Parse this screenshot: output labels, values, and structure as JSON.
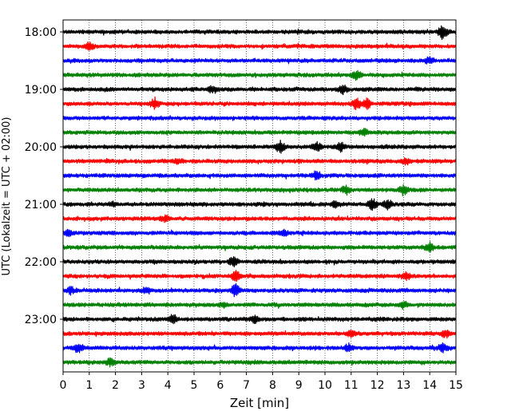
{
  "chart_data": {
    "type": "line",
    "title": "",
    "xlabel": "Zeit  [min]",
    "ylabel": "UTC (Lokalzeit = UTC + 02:00)",
    "xlim": [
      0,
      15
    ],
    "x_ticks": [
      0,
      1,
      2,
      3,
      4,
      5,
      6,
      7,
      8,
      9,
      10,
      11,
      12,
      13,
      14,
      15
    ],
    "x_tick_labels": [
      "0",
      "1",
      "2",
      "3",
      "4",
      "5",
      "6",
      "7",
      "8",
      "9",
      "10",
      "11",
      "12",
      "13",
      "14",
      "15"
    ],
    "y_tick_labels": [
      "18:00",
      "19:00",
      "20:00",
      "21:00",
      "22:00",
      "23:00"
    ],
    "grid": "vertical dotted lines at every minute",
    "row_colors": [
      "#000000",
      "#ff0000",
      "#0000ff",
      "#008000"
    ],
    "rows": [
      {
        "start": "18:00",
        "color": "#000000",
        "events": [
          [
            14.5,
            1.0
          ]
        ]
      },
      {
        "start": "18:15",
        "color": "#ff0000",
        "events": [
          [
            1.0,
            0.5
          ]
        ]
      },
      {
        "start": "18:30",
        "color": "#0000ff",
        "events": [
          [
            14.0,
            0.4
          ]
        ]
      },
      {
        "start": "18:45",
        "color": "#008000",
        "events": [
          [
            11.2,
            0.6
          ]
        ]
      },
      {
        "start": "19:00",
        "color": "#000000",
        "events": [
          [
            5.7,
            0.4
          ],
          [
            10.7,
            0.6
          ]
        ]
      },
      {
        "start": "19:15",
        "color": "#ff0000",
        "events": [
          [
            3.5,
            0.6
          ],
          [
            11.2,
            0.7
          ],
          [
            11.6,
            0.6
          ]
        ]
      },
      {
        "start": "19:30",
        "color": "#0000ff",
        "events": []
      },
      {
        "start": "19:45",
        "color": "#008000",
        "events": [
          [
            11.5,
            0.4
          ]
        ]
      },
      {
        "start": "20:00",
        "color": "#000000",
        "events": [
          [
            8.3,
            0.7
          ],
          [
            9.7,
            0.6
          ],
          [
            10.6,
            0.6
          ]
        ]
      },
      {
        "start": "20:15",
        "color": "#ff0000",
        "events": [
          [
            4.4,
            0.3
          ],
          [
            13.1,
            0.4
          ]
        ]
      },
      {
        "start": "20:30",
        "color": "#0000ff",
        "events": [
          [
            9.7,
            0.5
          ]
        ]
      },
      {
        "start": "20:45",
        "color": "#008000",
        "events": [
          [
            10.8,
            0.5
          ],
          [
            13.0,
            0.7
          ]
        ]
      },
      {
        "start": "21:00",
        "color": "#000000",
        "events": [
          [
            1.9,
            0.3
          ],
          [
            10.4,
            0.4
          ],
          [
            11.8,
            0.8
          ],
          [
            12.4,
            0.6
          ]
        ]
      },
      {
        "start": "21:15",
        "color": "#ff0000",
        "events": [
          [
            3.9,
            0.4
          ]
        ]
      },
      {
        "start": "21:30",
        "color": "#0000ff",
        "events": [
          [
            0.2,
            0.4
          ],
          [
            8.4,
            0.4
          ]
        ]
      },
      {
        "start": "21:45",
        "color": "#008000",
        "events": [
          [
            14.0,
            0.7
          ]
        ]
      },
      {
        "start": "22:00",
        "color": "#000000",
        "events": [
          [
            6.5,
            0.7
          ]
        ]
      },
      {
        "start": "22:15",
        "color": "#ff0000",
        "events": [
          [
            6.6,
            0.6
          ],
          [
            13.1,
            0.4
          ]
        ]
      },
      {
        "start": "22:30",
        "color": "#0000ff",
        "events": [
          [
            0.3,
            0.4
          ],
          [
            3.2,
            0.4
          ],
          [
            6.6,
            0.8
          ]
        ]
      },
      {
        "start": "22:45",
        "color": "#008000",
        "events": [
          [
            6.1,
            0.3
          ],
          [
            13.0,
            0.4
          ]
        ]
      },
      {
        "start": "23:00",
        "color": "#000000",
        "events": [
          [
            4.2,
            0.6
          ],
          [
            7.3,
            0.4
          ]
        ]
      },
      {
        "start": "23:15",
        "color": "#ff0000",
        "events": [
          [
            11.0,
            0.4
          ],
          [
            14.6,
            0.5
          ]
        ]
      },
      {
        "start": "23:30",
        "color": "#0000ff",
        "events": [
          [
            0.6,
            0.6
          ],
          [
            10.9,
            0.5
          ],
          [
            14.5,
            0.5
          ]
        ]
      },
      {
        "start": "23:45",
        "color": "#008000",
        "events": [
          [
            1.8,
            0.5
          ]
        ]
      }
    ]
  }
}
